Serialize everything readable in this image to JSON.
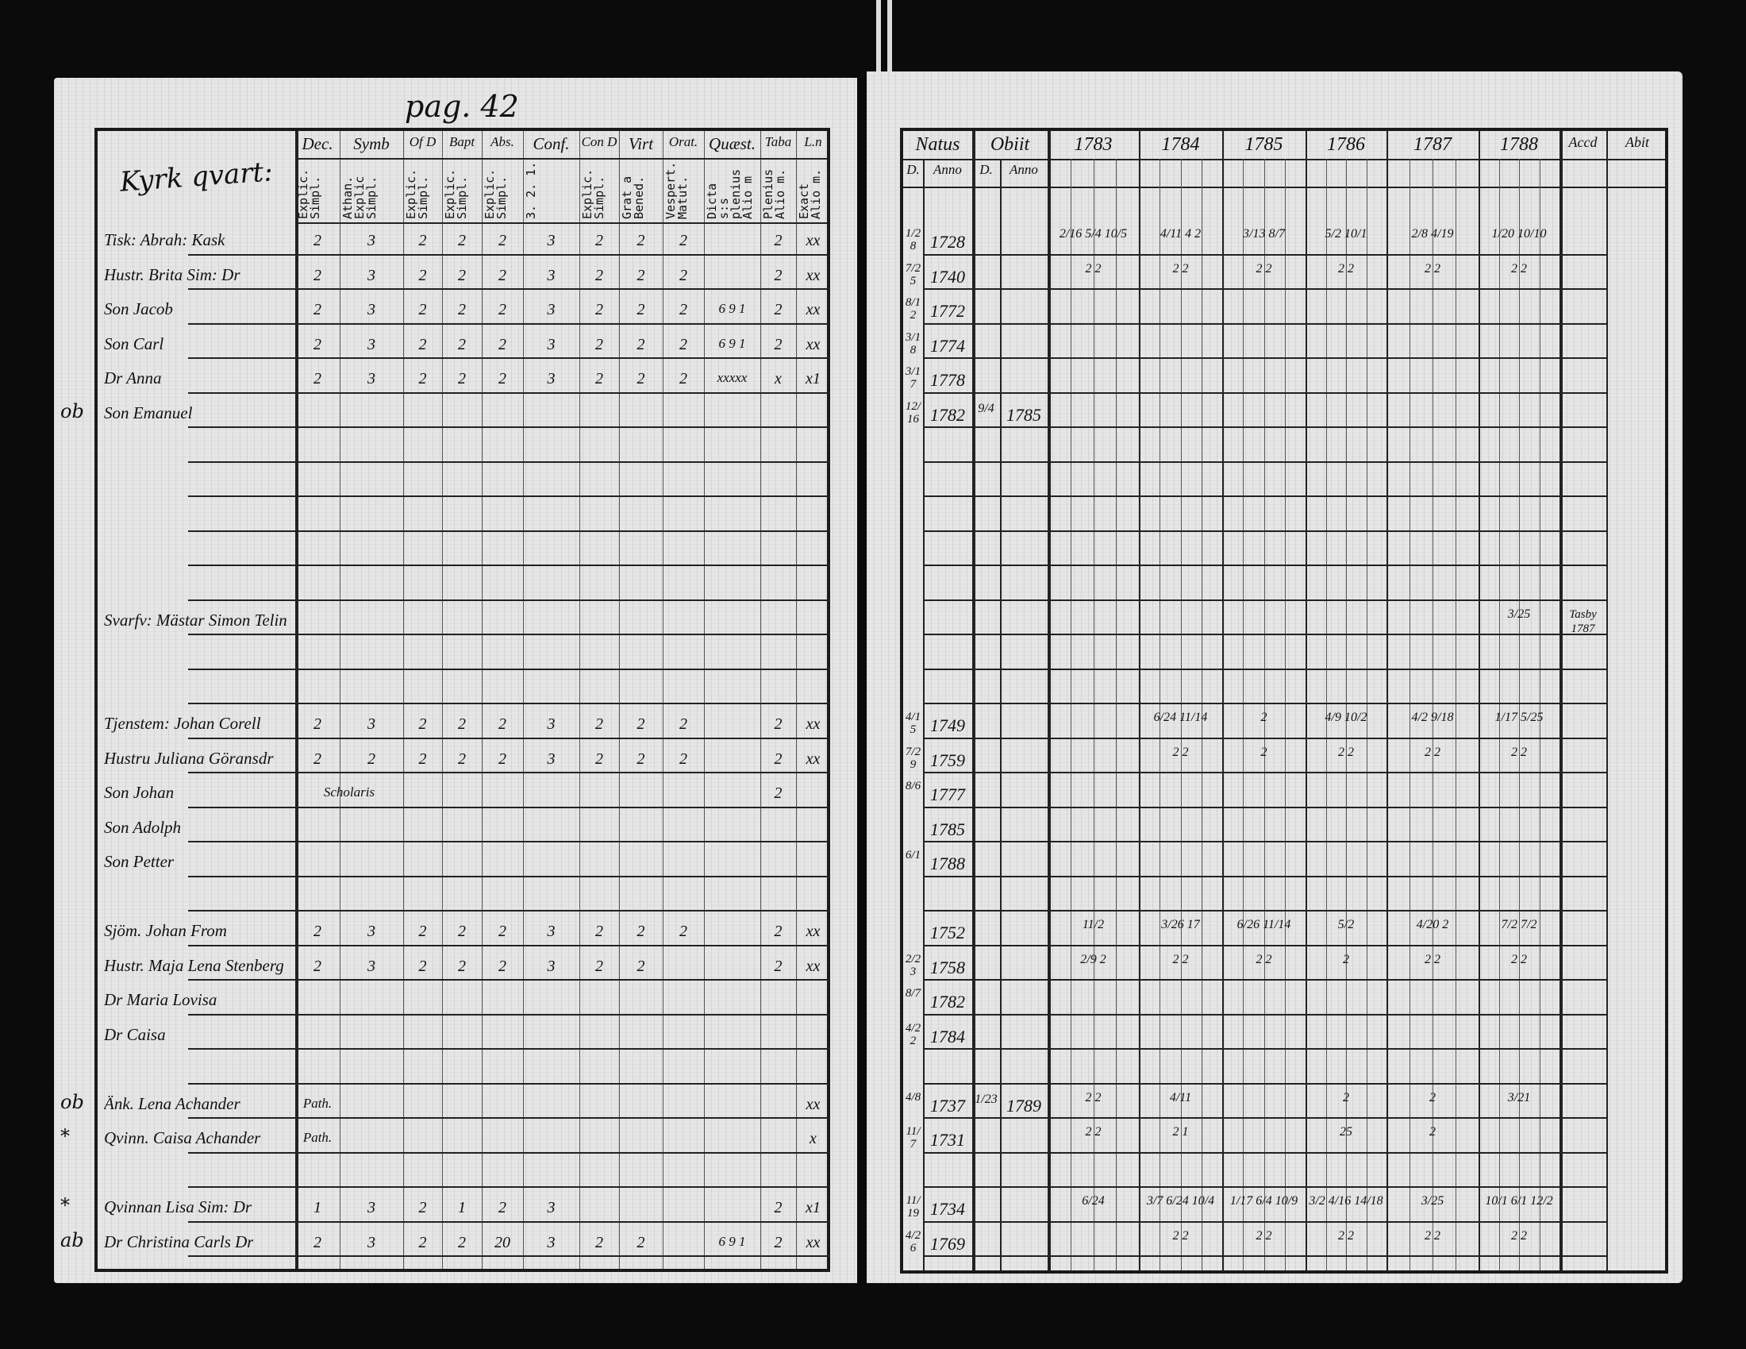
{
  "left_page": {
    "page_ref": "pag. 42",
    "section": "Kyrk qvart:",
    "columns": [
      {
        "head": "Dec.",
        "sub": "Explic. Simpl."
      },
      {
        "head": "Symb",
        "sub": "Athan. Explic Simpl."
      },
      {
        "head": "Of D",
        "sub": "Explic. Simpl."
      },
      {
        "head": "Bapt",
        "sub": "Explic. Simpl."
      },
      {
        "head": "Abs.",
        "sub": "Explic. Simpl."
      },
      {
        "head": "Conf.",
        "sub": "3. 2. 1."
      },
      {
        "head": "Con D",
        "sub": "Explic. Simpl."
      },
      {
        "head": "Virt",
        "sub": "Grat a Bened."
      },
      {
        "head": "Orat.",
        "sub": "Vespert. Matut."
      },
      {
        "head": "Quæst.",
        "sub": "Dicta s:s plenius Alio m"
      },
      {
        "head": "Taba",
        "sub": "Plenius Alio m."
      },
      {
        "head": "L.n",
        "sub": "Exact Alio m."
      }
    ]
  },
  "right_page": {
    "columns": [
      {
        "head": "Natus",
        "subs": [
          "D.",
          "Anno"
        ]
      },
      {
        "head": "Obiit",
        "subs": [
          "D.",
          "Anno"
        ]
      },
      {
        "head": "1783"
      },
      {
        "head": "1784"
      },
      {
        "head": "1785"
      },
      {
        "head": "1786"
      },
      {
        "head": "1787"
      },
      {
        "head": "1788"
      },
      {
        "head": "Accd"
      },
      {
        "head": "Abit"
      }
    ]
  },
  "rows": [
    {
      "name": "Tisk: Abrah: Kask",
      "marks": [
        "2",
        "3",
        "2",
        "2",
        "2",
        "3",
        "2",
        "2",
        "2",
        "",
        "2",
        "xx"
      ],
      "natus_d": "1/28",
      "natus_y": "1728",
      "obit_d": "",
      "obit_y": "",
      "years": [
        "2/16  5/4  10/5",
        "4/11  4 2",
        "3/13  8/7",
        "5/2  10/1",
        "2/8  4/19",
        "1/20  10/10"
      ],
      "accd": ""
    },
    {
      "name": "Hustr. Brita Sim: Dr",
      "marks": [
        "2",
        "3",
        "2",
        "2",
        "2",
        "3",
        "2",
        "2",
        "2",
        "",
        "2",
        "xx"
      ],
      "natus_d": "7/25",
      "natus_y": "1740",
      "obit_d": "",
      "obit_y": "",
      "years": [
        "2 2",
        "2 2",
        "2 2",
        "2 2",
        "2 2",
        "2 2"
      ],
      "accd": ""
    },
    {
      "name": "Son Jacob",
      "marks": [
        "2",
        "3",
        "2",
        "2",
        "2",
        "3",
        "2",
        "2",
        "2",
        "6 9 1",
        "2",
        "xx"
      ],
      "natus_d": "8/12",
      "natus_y": "1772",
      "obit_d": "",
      "obit_y": "",
      "years": [
        "",
        "",
        "",
        "",
        "",
        ""
      ],
      "accd": ""
    },
    {
      "name": "Son Carl",
      "marks": [
        "2",
        "3",
        "2",
        "2",
        "2",
        "3",
        "2",
        "2",
        "2",
        "6 9 1",
        "2",
        "xx"
      ],
      "natus_d": "3/18",
      "natus_y": "1774",
      "obit_d": "",
      "obit_y": "",
      "years": [
        "",
        "",
        "",
        "",
        "",
        ""
      ],
      "accd": ""
    },
    {
      "name": "Dr Anna",
      "marks": [
        "2",
        "3",
        "2",
        "2",
        "2",
        "3",
        "2",
        "2",
        "2",
        "xxxxx",
        "x",
        "x1"
      ],
      "natus_d": "3/17",
      "natus_y": "1778",
      "obit_d": "",
      "obit_y": "",
      "years": [
        "",
        "",
        "",
        "",
        "",
        ""
      ],
      "accd": ""
    },
    {
      "note": "ob",
      "name": "Son Emanuel",
      "marks": [
        "",
        "",
        "",
        "",
        "",
        "",
        "",
        "",
        "",
        "",
        "",
        ""
      ],
      "natus_d": "12/16",
      "natus_y": "1782",
      "obit_d": "9/4",
      "obit_y": "1785",
      "years": [
        "",
        "",
        "",
        "",
        "",
        ""
      ],
      "accd": ""
    },
    {},
    {},
    {},
    {},
    {},
    {
      "name": "Svarfv: Mästar Simon Telin",
      "marks": [],
      "natus_d": "",
      "natus_y": "",
      "obit_d": "",
      "obit_y": "",
      "years": [
        "",
        "",
        "",
        "",
        "",
        "3/25"
      ],
      "accd": "Tasby 1787"
    },
    {},
    {},
    {
      "name": "Tjenstem: Johan Corell",
      "marks": [
        "2",
        "3",
        "2",
        "2",
        "2",
        "3",
        "2",
        "2",
        "2",
        "",
        "2",
        "xx"
      ],
      "natus_d": "4/15",
      "natus_y": "1749",
      "obit_d": "",
      "obit_y": "",
      "years": [
        "",
        "6/24  11/14",
        "2",
        "4/9  10/2",
        "4/2  9/18",
        "1/17  5/25"
      ],
      "accd": ""
    },
    {
      "name": "Hustru Juliana Göransdr",
      "marks": [
        "2",
        "2",
        "2",
        "2",
        "2",
        "3",
        "2",
        "2",
        "2",
        "",
        "2",
        "xx"
      ],
      "natus_d": "7/29",
      "natus_y": "1759",
      "obit_d": "",
      "obit_y": "",
      "years": [
        "",
        "2 2",
        "2",
        "2 2",
        "2 2",
        "2 2"
      ],
      "accd": ""
    },
    {
      "name": "Son Johan",
      "marks": [
        "Scholaris",
        "",
        "",
        "",
        "",
        "",
        "",
        "",
        "",
        "",
        "2",
        ""
      ],
      "natus_d": "8/6",
      "natus_y": "1777",
      "obit_d": "",
      "obit_y": "",
      "years": [
        "",
        "",
        "",
        "",
        "",
        ""
      ],
      "accd": ""
    },
    {
      "name": "Son Adolph",
      "marks": [],
      "natus_d": "",
      "natus_y": "1785",
      "obit_d": "",
      "obit_y": "",
      "years": [
        "",
        "",
        "",
        "",
        "",
        ""
      ],
      "accd": ""
    },
    {
      "name": "Son Petter",
      "marks": [],
      "natus_d": "6/1",
      "natus_y": "1788",
      "obit_d": "",
      "obit_y": "",
      "years": [
        "",
        "",
        "",
        "",
        "",
        ""
      ],
      "accd": ""
    },
    {},
    {
      "name": "Sjöm. Johan From",
      "marks": [
        "2",
        "3",
        "2",
        "2",
        "2",
        "3",
        "2",
        "2",
        "2",
        "",
        "2",
        "xx"
      ],
      "natus_d": "",
      "natus_y": "1752",
      "obit_d": "",
      "obit_y": "",
      "years": [
        "11/2",
        "3/26  17",
        "6/26  11/14",
        "5/2",
        "4/20  2",
        "7/2  7/2"
      ],
      "accd": ""
    },
    {
      "name": "Hustr. Maja Lena Stenberg",
      "marks": [
        "2",
        "3",
        "2",
        "2",
        "2",
        "3",
        "2",
        "2",
        "",
        "",
        "2",
        "xx"
      ],
      "natus_d": "2/23",
      "natus_y": "1758",
      "obit_d": "",
      "obit_y": "",
      "years": [
        "2/9  2",
        "2  2",
        "2 2",
        "2",
        "2 2",
        "2 2"
      ],
      "accd": ""
    },
    {
      "name": "Dr Maria Lovisa",
      "marks": [],
      "natus_d": "8/7",
      "natus_y": "1782",
      "obit_d": "",
      "obit_y": "",
      "years": [
        "",
        "",
        "",
        "",
        "",
        ""
      ],
      "accd": ""
    },
    {
      "name": "Dr Caisa",
      "marks": [],
      "natus_d": "4/22",
      "natus_y": "1784",
      "obit_d": "",
      "obit_y": "",
      "years": [
        "",
        "",
        "",
        "",
        "",
        ""
      ],
      "accd": ""
    },
    {},
    {
      "note": "ob",
      "name": "Änk. Lena Achander",
      "marks": [
        "Path.",
        "",
        "",
        "",
        "",
        "",
        "",
        "",
        "",
        "",
        "",
        "xx"
      ],
      "natus_d": "4/8",
      "natus_y": "1737",
      "obit_d": "1/23",
      "obit_y": "1789",
      "years": [
        "2 2",
        "4/11",
        "",
        "2",
        "2",
        "3/21"
      ],
      "accd": ""
    },
    {
      "note": "*",
      "name": "Qvinn. Caisa Achander",
      "marks": [
        "Path.",
        "",
        "",
        "",
        "",
        "",
        "",
        "",
        "",
        "",
        "",
        "x"
      ],
      "natus_d": "11/7",
      "natus_y": "1731",
      "obit_d": "",
      "obit_y": "",
      "years": [
        "2  2",
        "2  1",
        "",
        "25",
        "2",
        ""
      ],
      "accd": ""
    },
    {},
    {
      "note": "*",
      "name": "Qvinnan Lisa Sim: Dr",
      "marks": [
        "1",
        "3",
        "2",
        "1",
        "2",
        "3",
        "",
        "",
        "",
        "",
        "2",
        "x1"
      ],
      "natus_d": "11/19",
      "natus_y": "1734",
      "obit_d": "",
      "obit_y": "",
      "years": [
        "6/24",
        "3/7  6/24  10/4",
        "1/17  6/4  10/9",
        "3/2  4/16  14/18",
        "3/25",
        "10/1  6/1  12/2"
      ],
      "accd": ""
    },
    {
      "note": "ab",
      "name": "Dr Christina Carls Dr",
      "marks": [
        "2",
        "3",
        "2",
        "2",
        "20",
        "3",
        "2",
        "2",
        "",
        "6 9 1",
        "2",
        "xx"
      ],
      "natus_d": "4/26",
      "natus_y": "1769",
      "obit_d": "",
      "obit_y": "",
      "years": [
        "",
        "2  2",
        "2  2",
        "2 2",
        "2 2",
        "2 2"
      ],
      "accd": ""
    }
  ]
}
